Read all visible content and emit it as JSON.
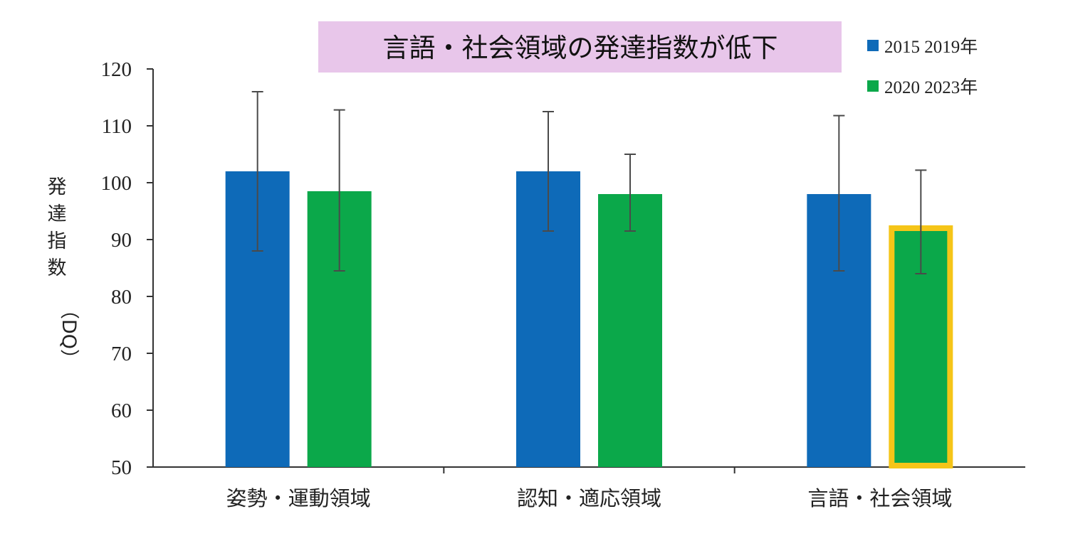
{
  "chart_data": {
    "type": "bar",
    "title": "言語・社会領域の発達指数が低下",
    "xlabel": "",
    "ylabel": "発達指数（DQ）",
    "ylim": [
      50,
      120
    ],
    "yticks": [
      50,
      60,
      70,
      80,
      90,
      100,
      110,
      120
    ],
    "categories": [
      "姿勢・運動領域",
      "認知・適応領域",
      "言語・社会領域"
    ],
    "series": [
      {
        "name": "2015 2019年",
        "color": "#0e6ab8",
        "values": [
          102,
          102,
          98
        ],
        "error_low": [
          88,
          91.5,
          84.5
        ],
        "error_high": [
          116,
          112.5,
          111.8
        ]
      },
      {
        "name": "2020 2023年",
        "color": "#0ba84a",
        "values": [
          98.5,
          98,
          92.5
        ],
        "error_low": [
          84.5,
          91.5,
          84
        ],
        "error_high": [
          112.8,
          105,
          102.2
        ]
      }
    ],
    "highlight": {
      "series": 1,
      "category": 2,
      "color": "#f5c518"
    },
    "title_background": "#e8c6ea",
    "grid": false,
    "legend": "top-right"
  }
}
